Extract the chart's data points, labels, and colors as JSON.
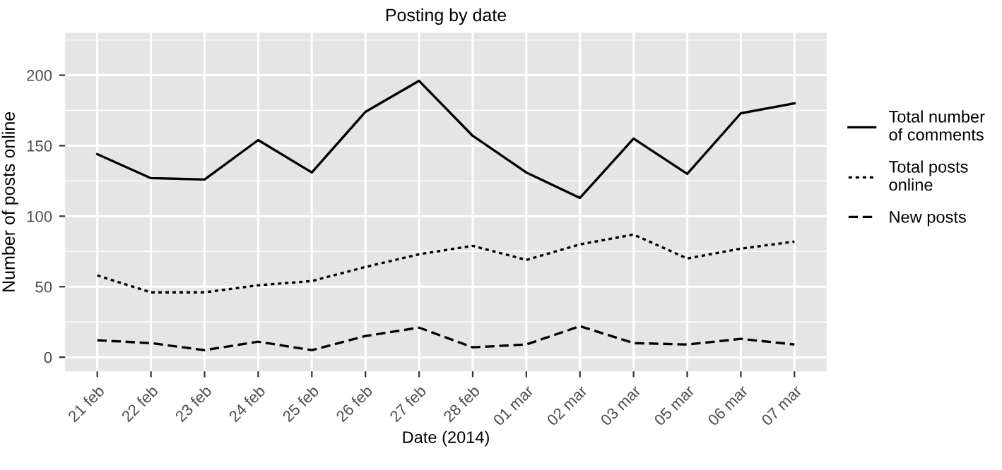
{
  "chart_data": {
    "type": "line",
    "title": "Posting by date",
    "xlabel": "Date (2014)",
    "ylabel": "Number of posts online",
    "categories": [
      "21 feb",
      "22 feb",
      "23 feb",
      "24 feb",
      "25 feb",
      "26 feb",
      "27 feb",
      "28 feb",
      "01 mar",
      "02 mar",
      "03 mar",
      "05 mar",
      "06 mar",
      "07 mar"
    ],
    "series": [
      {
        "name": "Total number of comments",
        "color": "#000000",
        "line_style": "solid",
        "values": [
          144,
          127,
          126,
          154,
          131,
          174,
          196,
          157,
          131,
          113,
          155,
          130,
          173,
          180
        ]
      },
      {
        "name": "Total posts online",
        "color": "#000000",
        "line_style": "dotted",
        "values": [
          58,
          46,
          46,
          51,
          54,
          64,
          73,
          79,
          69,
          80,
          87,
          70,
          77,
          82
        ]
      },
      {
        "name": "New posts",
        "color": "#000000",
        "line_style": "dashed",
        "values": [
          12,
          10,
          5,
          11,
          5,
          15,
          21,
          7,
          9,
          22,
          10,
          9,
          13,
          9
        ]
      }
    ],
    "ylim": [
      -10,
      230
    ],
    "yticks": [
      0,
      50,
      100,
      150,
      200
    ],
    "grid": true,
    "legend": "right"
  }
}
